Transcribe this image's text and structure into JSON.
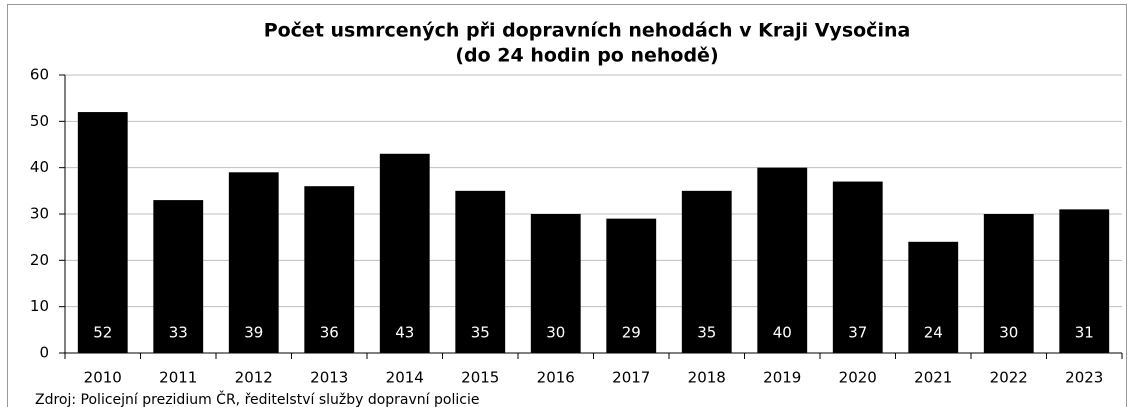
{
  "chart_data": {
    "type": "bar",
    "title": [
      "Počet usmrcených při dopravních nehodách v Kraji Vysočina",
      "(do 24 hodin po nehodě)"
    ],
    "categories": [
      "2010",
      "2011",
      "2012",
      "2013",
      "2014",
      "2015",
      "2016",
      "2017",
      "2018",
      "2019",
      "2020",
      "2021",
      "2022",
      "2023"
    ],
    "values": [
      52,
      33,
      39,
      36,
      43,
      35,
      30,
      29,
      35,
      40,
      37,
      24,
      30,
      31
    ],
    "color": "#000000",
    "label_color": "#ffffff",
    "ylim": [
      0,
      60
    ],
    "yticks": [
      0,
      10,
      20,
      30,
      40,
      50,
      60
    ],
    "grid": true,
    "source": "Zdroj: Policejní prezidium ČR, ředitelství služby dopravní policie"
  }
}
